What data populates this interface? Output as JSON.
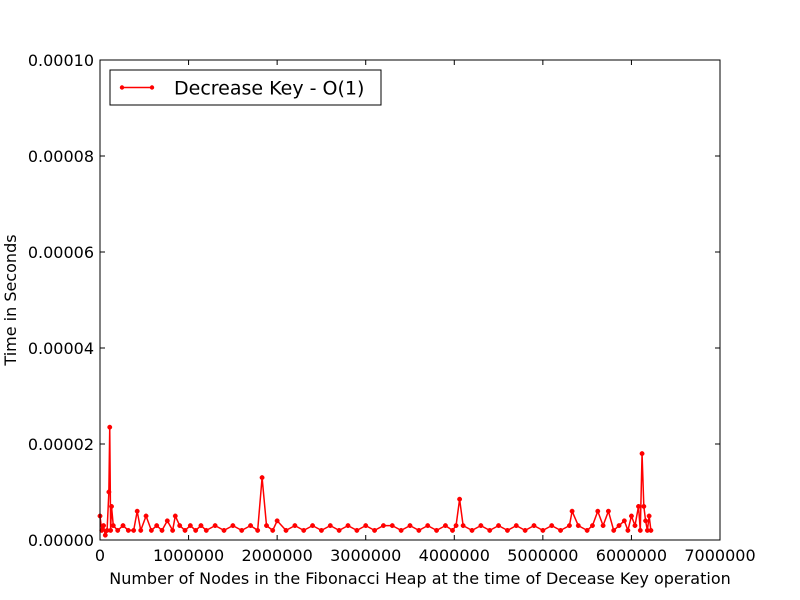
{
  "chart_data": {
    "type": "line",
    "title": "",
    "xlabel": "Number of Nodes in the Fibonacci Heap at the time of Decease Key operation",
    "ylabel": "Time in Seconds",
    "xlim": [
      0,
      7000000
    ],
    "ylim": [
      0,
      0.0001
    ],
    "xticks": [
      0,
      1000000,
      2000000,
      3000000,
      4000000,
      5000000,
      6000000,
      7000000
    ],
    "xtick_labels": [
      "0",
      "1000000",
      "2000000",
      "3000000",
      "4000000",
      "5000000",
      "6000000",
      "7000000"
    ],
    "yticks": [
      0,
      2e-05,
      4e-05,
      6e-05,
      8e-05,
      0.0001
    ],
    "ytick_labels": [
      "0.00000",
      "0.00002",
      "0.00004",
      "0.00006",
      "0.00008",
      "0.00010"
    ],
    "grid": false,
    "legend_position": "top-left",
    "series": [
      {
        "name": "Decrease Key - O(1)",
        "color": "#ff0000",
        "marker": "dot",
        "x": [
          0,
          20000,
          40000,
          60000,
          80000,
          100000,
          110000,
          120000,
          130000,
          150000,
          200000,
          260000,
          320000,
          380000,
          420000,
          460000,
          520000,
          580000,
          640000,
          700000,
          760000,
          820000,
          850000,
          900000,
          960000,
          1020000,
          1080000,
          1140000,
          1200000,
          1300000,
          1400000,
          1500000,
          1600000,
          1700000,
          1780000,
          1830000,
          1880000,
          1950000,
          2000000,
          2100000,
          2200000,
          2300000,
          2400000,
          2500000,
          2600000,
          2700000,
          2800000,
          2900000,
          3000000,
          3100000,
          3200000,
          3300000,
          3400000,
          3500000,
          3600000,
          3700000,
          3800000,
          3900000,
          3980000,
          4020000,
          4060000,
          4100000,
          4200000,
          4300000,
          4400000,
          4500000,
          4600000,
          4700000,
          4800000,
          4900000,
          5000000,
          5100000,
          5200000,
          5300000,
          5330000,
          5400000,
          5500000,
          5560000,
          5620000,
          5680000,
          5740000,
          5800000,
          5860000,
          5920000,
          5960000,
          6000000,
          6040000,
          6080000,
          6100000,
          6120000,
          6140000,
          6160000,
          6180000,
          6200000,
          6220000
        ],
        "y": [
          5e-06,
          2e-06,
          3e-06,
          1e-06,
          2e-06,
          1e-05,
          2.35e-05,
          2e-06,
          7e-06,
          3e-06,
          2e-06,
          3e-06,
          2e-06,
          2e-06,
          6e-06,
          2e-06,
          5e-06,
          2e-06,
          3e-06,
          2e-06,
          4e-06,
          2e-06,
          5e-06,
          3e-06,
          2e-06,
          3e-06,
          2e-06,
          3e-06,
          2e-06,
          3e-06,
          2e-06,
          3e-06,
          2e-06,
          3e-06,
          2e-06,
          1.3e-05,
          3e-06,
          2e-06,
          4e-06,
          2e-06,
          3e-06,
          2e-06,
          3e-06,
          2e-06,
          3e-06,
          2e-06,
          3e-06,
          2e-06,
          3e-06,
          2e-06,
          3e-06,
          3e-06,
          2e-06,
          3e-06,
          2e-06,
          3e-06,
          2e-06,
          3e-06,
          2e-06,
          3e-06,
          8.5e-06,
          3e-06,
          2e-06,
          3e-06,
          2e-06,
          3e-06,
          2e-06,
          3e-06,
          2e-06,
          3e-06,
          2e-06,
          3e-06,
          2e-06,
          3e-06,
          6e-06,
          3e-06,
          2e-06,
          3e-06,
          6e-06,
          3e-06,
          6e-06,
          2e-06,
          3e-06,
          4e-06,
          2e-06,
          5e-06,
          3e-06,
          7e-06,
          2e-06,
          1.8e-05,
          7e-06,
          4e-06,
          2e-06,
          5e-06,
          2e-06
        ]
      }
    ]
  }
}
